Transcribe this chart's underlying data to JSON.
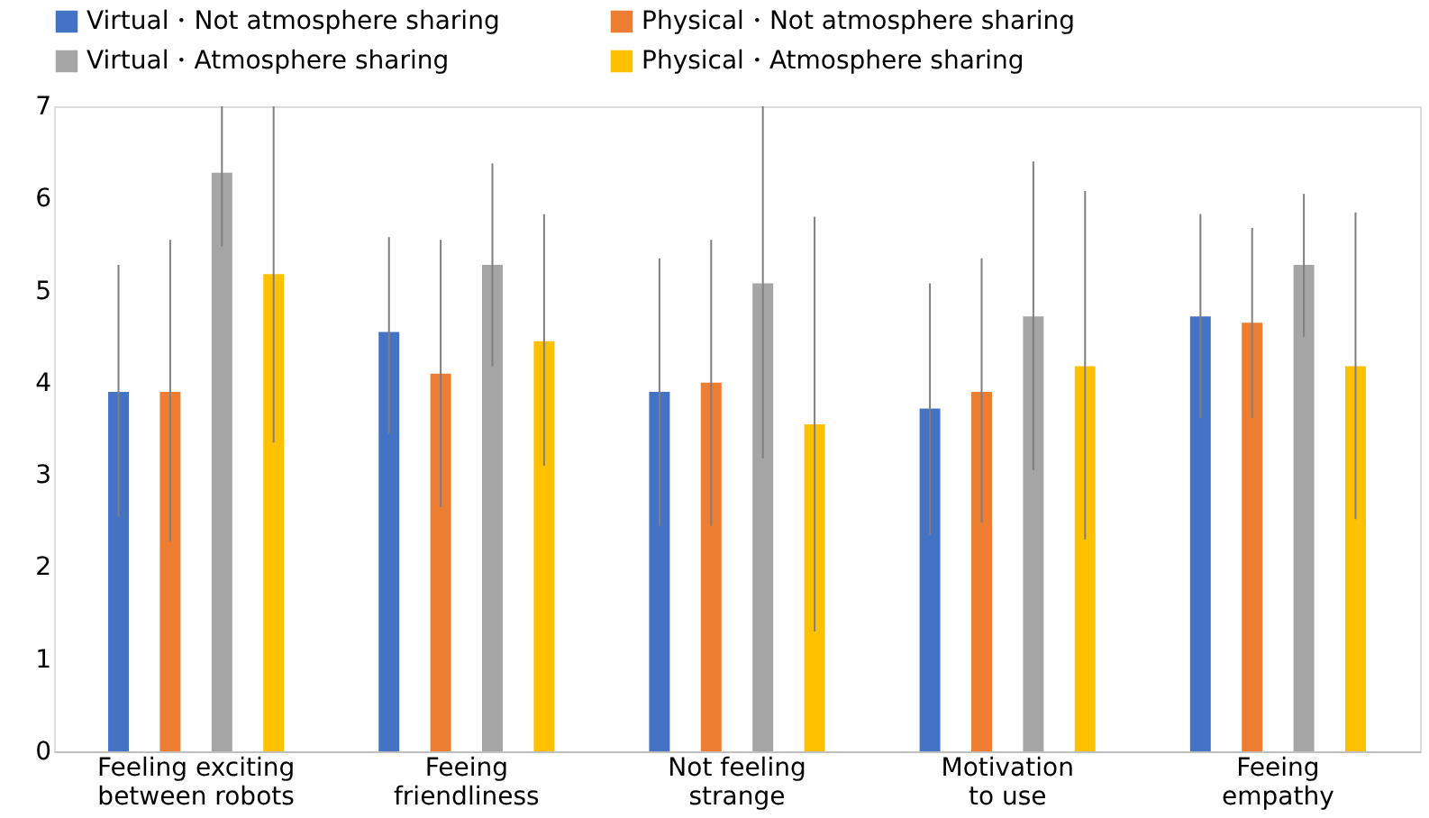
{
  "chart_data": {
    "type": "bar",
    "categories": [
      "Feeling exciting\nbetween robots",
      "Feeing\nfriendliness",
      "Not feeling\nstrange",
      "Motivation\nto use",
      "Feeing\nempathy"
    ],
    "series": [
      {
        "name": "Virtual・Not atmosphere sharing",
        "color": "#4472c4",
        "values": [
          3.9,
          4.55,
          3.9,
          3.72,
          4.72
        ],
        "errors": [
          [
            2.55,
            5.28
          ],
          [
            3.45,
            5.58
          ],
          [
            2.45,
            5.35
          ],
          [
            2.35,
            5.08
          ],
          [
            3.62,
            5.83
          ]
        ]
      },
      {
        "name": "Physical・Not atmosphere sharing",
        "color": "#ed7d31",
        "values": [
          3.9,
          4.1,
          4.0,
          3.9,
          4.65
        ],
        "errors": [
          [
            2.28,
            5.55
          ],
          [
            2.65,
            5.55
          ],
          [
            2.45,
            5.55
          ],
          [
            2.48,
            5.35
          ],
          [
            3.62,
            5.68
          ]
        ]
      },
      {
        "name": "Virtual・Atmosphere sharing",
        "color": "#a5a5a5",
        "values": [
          6.28,
          5.28,
          5.08,
          4.72,
          5.28
        ],
        "errors": [
          [
            5.48,
            7
          ],
          [
            4.18,
            6.38
          ],
          [
            3.18,
            7
          ],
          [
            3.05,
            6.4
          ],
          [
            4.5,
            6.05
          ]
        ]
      },
      {
        "name": "Physical・Atmosphere sharing",
        "color": "#ffc000",
        "values": [
          5.18,
          4.45,
          3.55,
          4.18,
          4.18
        ],
        "errors": [
          [
            3.35,
            7
          ],
          [
            3.1,
            5.83
          ],
          [
            1.3,
            5.8
          ],
          [
            2.3,
            6.08
          ],
          [
            2.52,
            5.85
          ]
        ]
      }
    ],
    "ylim": [
      0,
      7
    ],
    "yticks": [
      0,
      1,
      2,
      3,
      4,
      5,
      6,
      7
    ],
    "grid": false,
    "legend": "top"
  }
}
